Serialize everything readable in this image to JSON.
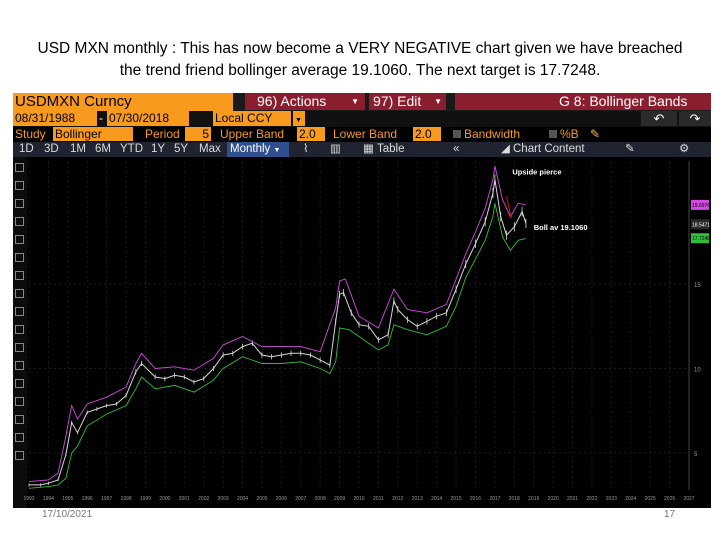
{
  "slide": {
    "title_line1": "USD MXN monthly : This has now become a VERY NEGATIVE chart given we have breached",
    "title_line2": "the trend friend bollinger average 19.1060. The next target is 17.7248.",
    "footer_date": "17/10/2021",
    "page_number": "17"
  },
  "terminal": {
    "ticker": "USDMXN Curncy",
    "actions": "96) Actions",
    "edit": "97) Edit",
    "function_title": "G 8: Bollinger Bands",
    "start_date": "08/31/1988",
    "end_date": "07/30/2018",
    "currency": "Local CCY",
    "study_label": "Study",
    "study_value": "Bollinger",
    "period_label": "Period",
    "period_value": "5",
    "upper_band_label": "Upper Band",
    "upper_band_value": "2.0",
    "lower_band_label": "Lower Band",
    "lower_band_value": "2.0",
    "bandwidth_label": "Bandwidth",
    "percent_b_label": "%B",
    "range_tabs": [
      "1D",
      "3D",
      "1M",
      "6M",
      "YTD",
      "1Y",
      "5Y",
      "Max"
    ],
    "frequency": "Monthly",
    "table_label": "Table",
    "chart_content_label": "Chart Content",
    "colors": {
      "bloomberg_orange": "#f79a1d",
      "menu_red": "#8b1e2e",
      "price": "#d8d8d8",
      "upper_band": "#d14be0",
      "lower_band": "#2fbf3a",
      "annotation": "#d01818"
    }
  },
  "chart_data": {
    "type": "line",
    "title": "",
    "xlabel": "",
    "ylabel": "",
    "xlim": [
      1993,
      2027
    ],
    "ylim": [
      2.8,
      22.3
    ],
    "x_ticks": [
      "1993",
      "1994",
      "1995",
      "1996",
      "1997",
      "1998",
      "1999",
      "2000",
      "2001",
      "2002",
      "2003",
      "2004",
      "2005",
      "2006",
      "2007",
      "2008",
      "2009",
      "2010",
      "2011",
      "2012",
      "2013",
      "2014",
      "2015",
      "2016",
      "2017",
      "2018",
      "2019",
      "2020",
      "2021",
      "2022",
      "2023",
      "2024",
      "2025",
      "2026",
      "2027"
    ],
    "y_ticks": [
      5,
      10,
      15
    ],
    "last_values": {
      "upper": "19.6976",
      "price": "18.5471",
      "lower": "17.7248"
    },
    "annotations": {
      "pierce": "Upside pierce",
      "average": "Boll av 19.1060"
    },
    "series": [
      {
        "name": "",
        "role": "price",
        "x": [
          1993.0,
          1993.6,
          1994.0,
          1994.5,
          1994.9,
          1995.2,
          1995.5,
          1996.0,
          1996.5,
          1997.0,
          1997.5,
          1998.0,
          1998.5,
          1998.8,
          1999.5,
          2000.0,
          2000.5,
          2001.0,
          2001.5,
          2002.0,
          2002.5,
          2003.0,
          2003.5,
          2004.0,
          2004.5,
          2005.0,
          2005.5,
          2006.0,
          2006.5,
          2007.0,
          2007.5,
          2008.0,
          2008.5,
          2008.8,
          2009.0,
          2009.2,
          2009.6,
          2010.0,
          2010.5,
          2011.0,
          2011.5,
          2011.8,
          2012.0,
          2012.5,
          2013.0,
          2013.5,
          2014.0,
          2014.5,
          2015.0,
          2015.5,
          2016.0,
          2016.5,
          2016.9,
          2017.0,
          2017.3,
          2017.6,
          2018.0,
          2018.4,
          2018.6
        ],
        "y": [
          3.1,
          3.1,
          3.2,
          3.4,
          4.9,
          6.8,
          6.2,
          7.4,
          7.6,
          7.8,
          7.9,
          8.4,
          9.8,
          10.3,
          9.5,
          9.4,
          9.6,
          9.5,
          9.2,
          9.4,
          10.0,
          10.8,
          10.9,
          11.3,
          11.5,
          10.8,
          10.7,
          10.8,
          10.9,
          10.9,
          10.8,
          10.5,
          10.2,
          12.8,
          14.4,
          14.5,
          13.3,
          12.6,
          12.5,
          11.7,
          12.0,
          14.0,
          13.5,
          12.9,
          12.5,
          12.8,
          13.1,
          13.3,
          14.7,
          16.2,
          17.4,
          18.7,
          20.4,
          21.2,
          19.0,
          17.9,
          18.4,
          19.3,
          18.6
        ]
      },
      {
        "name": "",
        "role": "upper_band",
        "x": [
          1993.0,
          1994.0,
          1994.5,
          1994.9,
          1995.2,
          1995.5,
          1996.0,
          1997.0,
          1998.0,
          1998.5,
          1998.8,
          1999.5,
          2000.5,
          2001.5,
          2002.5,
          2003.0,
          2004.0,
          2005.0,
          2006.0,
          2007.0,
          2008.0,
          2008.8,
          2009.0,
          2009.3,
          2010.0,
          2011.0,
          2011.8,
          2012.5,
          2013.5,
          2014.5,
          2015.0,
          2015.5,
          2016.0,
          2016.5,
          2016.9,
          2017.0,
          2017.4,
          2017.8,
          2018.2,
          2018.6
        ],
        "y": [
          3.3,
          3.4,
          3.8,
          6.0,
          7.8,
          7.0,
          7.9,
          8.3,
          8.9,
          10.3,
          10.9,
          10.0,
          10.1,
          9.9,
          10.6,
          11.4,
          11.9,
          11.3,
          11.3,
          11.3,
          11.0,
          13.6,
          15.2,
          15.3,
          13.1,
          12.4,
          14.7,
          13.5,
          13.3,
          13.8,
          15.3,
          16.8,
          18.1,
          19.5,
          21.2,
          22.0,
          20.0,
          19.0,
          19.8,
          19.7
        ]
      },
      {
        "name": "",
        "role": "lower_band",
        "x": [
          1993.0,
          1994.0,
          1994.5,
          1994.9,
          1995.2,
          1995.5,
          1996.0,
          1997.0,
          1998.0,
          1998.5,
          1998.8,
          1999.5,
          2000.5,
          2001.5,
          2002.5,
          2003.0,
          2004.0,
          2005.0,
          2006.0,
          2007.0,
          2008.0,
          2008.5,
          2008.8,
          2009.0,
          2009.5,
          2010.0,
          2011.0,
          2011.5,
          2011.8,
          2012.5,
          2013.5,
          2014.5,
          2015.0,
          2015.5,
          2016.0,
          2016.5,
          2016.9,
          2017.0,
          2017.4,
          2017.8,
          2018.2,
          2018.6
        ],
        "y": [
          2.9,
          3.0,
          3.1,
          3.5,
          5.0,
          5.4,
          6.6,
          7.3,
          7.8,
          8.8,
          9.5,
          8.8,
          9.0,
          8.6,
          9.3,
          10.0,
          10.7,
          10.3,
          10.3,
          10.4,
          10.0,
          9.7,
          10.4,
          12.4,
          12.3,
          11.9,
          11.1,
          11.4,
          12.6,
          12.3,
          12.0,
          12.5,
          13.7,
          15.4,
          16.5,
          17.6,
          19.0,
          19.8,
          17.8,
          17.0,
          17.6,
          17.7
        ]
      }
    ]
  }
}
